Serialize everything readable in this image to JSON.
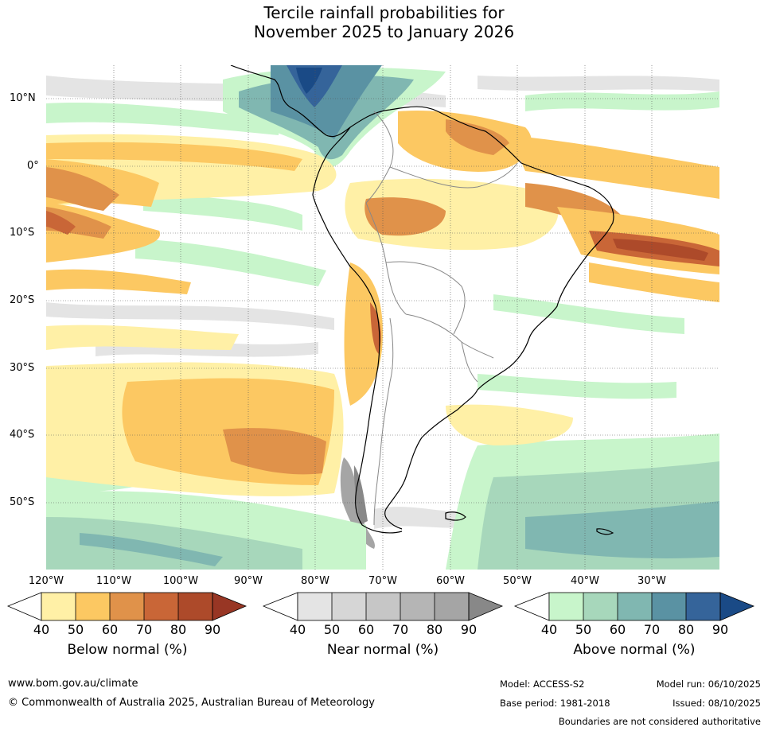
{
  "title": {
    "line1": "Tercile rainfall probabilities for",
    "line2": "November 2025 to January 2026"
  },
  "map": {
    "region": "South America",
    "lat_labels": [
      "10°N",
      "0°",
      "10°S",
      "20°S",
      "30°S",
      "40°S",
      "50°S"
    ],
    "lon_labels": [
      "120°W",
      "110°W",
      "100°W",
      "90°W",
      "80°W",
      "70°W",
      "60°W",
      "50°W",
      "40°W",
      "30°W"
    ]
  },
  "colorbars": {
    "below": {
      "label": "Below normal (%)",
      "ticks": [
        "40",
        "50",
        "60",
        "70",
        "80",
        "90"
      ],
      "colors": [
        "#fff0a6",
        "#fcc862",
        "#e0924a",
        "#c96637",
        "#ad4a2a",
        "#983624"
      ]
    },
    "near": {
      "label": "Near normal (%)",
      "ticks": [
        "40",
        "50",
        "60",
        "70",
        "80",
        "90"
      ],
      "colors": [
        "#e4e4e4",
        "#d6d6d6",
        "#c6c6c6",
        "#b5b5b5",
        "#a5a5a5",
        "#888888"
      ]
    },
    "above": {
      "label": "Above normal (%)",
      "ticks": [
        "40",
        "50",
        "60",
        "70",
        "80",
        "90"
      ],
      "colors": [
        "#c8f5cb",
        "#a7d7bb",
        "#80b7b1",
        "#5a92a3",
        "#35649a",
        "#1a4a86"
      ]
    }
  },
  "footer": {
    "website": "www.bom.gov.au/climate",
    "copyright": "© Commonwealth of Australia 2025, Australian Bureau of Meteorology",
    "model": "Model: ACCESS-S2",
    "base_period": "Base period: 1981-2018",
    "model_run": "Model run: 06/10/2025",
    "issued": "Issued: 08/10/2025",
    "disclaimer": "Boundaries are not considered authoritative"
  }
}
